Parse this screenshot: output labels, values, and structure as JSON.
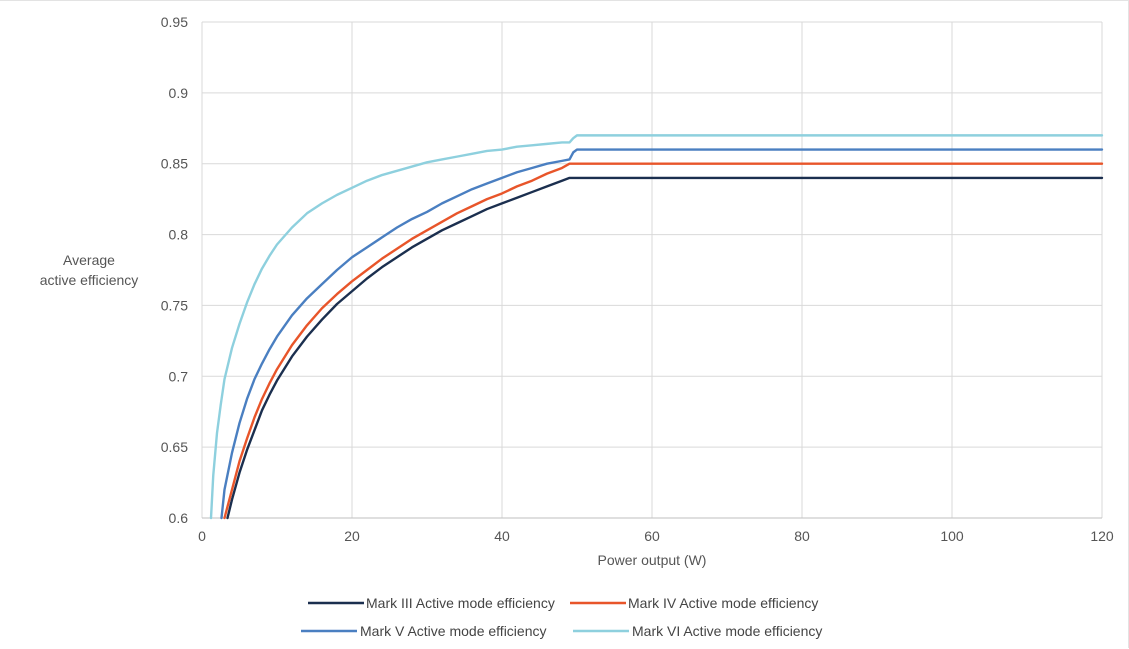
{
  "chart_data": {
    "type": "line",
    "title": "",
    "xlabel": "Power output (W)",
    "ylabel_lines": [
      "Average",
      "active efficiency"
    ],
    "xlim": [
      0,
      120
    ],
    "ylim": [
      0.6,
      0.95
    ],
    "xticks": [
      0,
      20,
      40,
      60,
      80,
      100,
      120
    ],
    "yticks": [
      0.6,
      0.65,
      0.7,
      0.75,
      0.8,
      0.85,
      0.9,
      0.95
    ],
    "ytick_labels": [
      "0.6",
      "0.65",
      "0.7",
      "0.75",
      "0.8",
      "0.85",
      "0.9",
      "0.95"
    ],
    "grid": true,
    "legend_position": "bottom",
    "series": [
      {
        "name": "Mark III Active mode efficiency",
        "color": "#1b2f4f",
        "x": [
          3.4,
          4,
          5,
          6,
          7,
          8,
          9,
          10,
          12,
          14,
          16,
          18,
          20,
          22,
          24,
          26,
          28,
          30,
          32,
          34,
          36,
          38,
          40,
          42,
          44,
          46,
          48,
          49,
          50,
          120
        ],
        "y": [
          0.6,
          0.613,
          0.632,
          0.648,
          0.662,
          0.676,
          0.687,
          0.697,
          0.714,
          0.728,
          0.74,
          0.751,
          0.76,
          0.769,
          0.777,
          0.784,
          0.791,
          0.797,
          0.803,
          0.808,
          0.813,
          0.818,
          0.822,
          0.826,
          0.83,
          0.834,
          0.838,
          0.84,
          0.84,
          0.84
        ]
      },
      {
        "name": "Mark IV Active mode efficiency",
        "color": "#e8552a",
        "x": [
          3,
          4,
          5,
          6,
          7,
          8,
          9,
          10,
          12,
          14,
          16,
          18,
          20,
          22,
          24,
          26,
          28,
          30,
          32,
          34,
          36,
          38,
          40,
          42,
          44,
          46,
          48,
          49,
          50,
          120
        ],
        "y": [
          0.6,
          0.62,
          0.64,
          0.656,
          0.671,
          0.684,
          0.695,
          0.705,
          0.722,
          0.736,
          0.748,
          0.758,
          0.767,
          0.775,
          0.783,
          0.79,
          0.797,
          0.803,
          0.809,
          0.815,
          0.82,
          0.825,
          0.829,
          0.834,
          0.838,
          0.843,
          0.847,
          0.85,
          0.85,
          0.85
        ]
      },
      {
        "name": "Mark V Active mode efficiency",
        "color": "#4a7fc1",
        "x": [
          2.6,
          3,
          4,
          5,
          6,
          7,
          8,
          9,
          10,
          12,
          14,
          16,
          18,
          20,
          22,
          24,
          26,
          28,
          30,
          32,
          34,
          36,
          38,
          40,
          42,
          44,
          46,
          48,
          49,
          49.5,
          50,
          120
        ],
        "y": [
          0.6,
          0.62,
          0.646,
          0.667,
          0.684,
          0.698,
          0.709,
          0.719,
          0.728,
          0.743,
          0.755,
          0.765,
          0.775,
          0.784,
          0.791,
          0.798,
          0.805,
          0.811,
          0.816,
          0.822,
          0.827,
          0.832,
          0.836,
          0.84,
          0.844,
          0.847,
          0.85,
          0.852,
          0.853,
          0.858,
          0.86,
          0.86
        ]
      },
      {
        "name": "Mark VI Active mode efficiency",
        "color": "#8ed0de",
        "x": [
          1.2,
          1.5,
          2,
          2.5,
          3,
          4,
          5,
          6,
          7,
          8,
          9,
          10,
          12,
          14,
          16,
          18,
          20,
          22,
          24,
          26,
          28,
          30,
          32,
          34,
          36,
          38,
          40,
          42,
          44,
          46,
          48,
          49,
          49.5,
          50,
          120
        ],
        "y": [
          0.6,
          0.63,
          0.66,
          0.68,
          0.698,
          0.72,
          0.737,
          0.752,
          0.765,
          0.776,
          0.785,
          0.793,
          0.805,
          0.815,
          0.822,
          0.828,
          0.833,
          0.838,
          0.842,
          0.845,
          0.848,
          0.851,
          0.853,
          0.855,
          0.857,
          0.859,
          0.86,
          0.862,
          0.863,
          0.864,
          0.865,
          0.865,
          0.868,
          0.87,
          0.87
        ]
      }
    ]
  }
}
